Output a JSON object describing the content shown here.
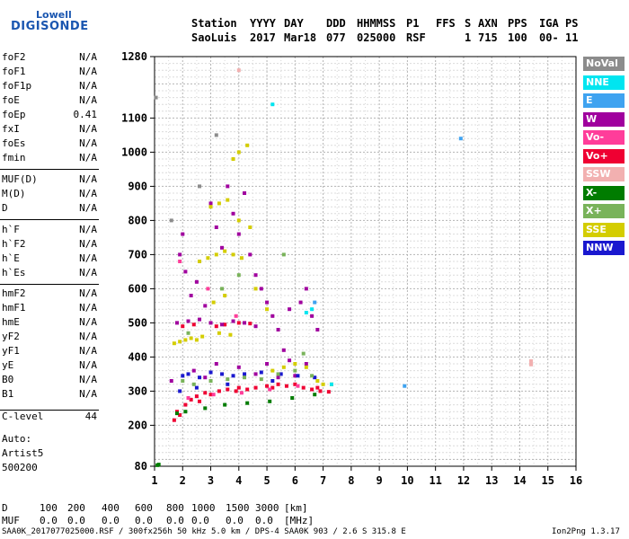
{
  "logo": {
    "line1": "Lowell",
    "line2": "DIGISONDE"
  },
  "header": {
    "labels": [
      "Station",
      "YYYY",
      "DAY",
      "DDD",
      "HHMMSS",
      "P1",
      "FFS",
      "S",
      "AXN",
      "PPS",
      "IGA",
      "PS"
    ],
    "values": [
      "SaoLuis",
      "2017",
      "Mar18",
      "077",
      "025000",
      "RSF",
      "1",
      "715",
      "100",
      "00-",
      "11"
    ]
  },
  "params": {
    "g1": [
      {
        "k": "foF2",
        "v": "N/A"
      },
      {
        "k": "foF1",
        "v": "N/A"
      },
      {
        "k": "foF1p",
        "v": "N/A"
      },
      {
        "k": "foE",
        "v": "N/A"
      },
      {
        "k": "foEp",
        "v": "0.41"
      },
      {
        "k": "fxI",
        "v": "N/A"
      },
      {
        "k": "foEs",
        "v": "N/A"
      },
      {
        "k": "fmin",
        "v": "N/A"
      }
    ],
    "g2": [
      {
        "k": "MUF(D)",
        "v": "N/A"
      },
      {
        "k": "M(D)",
        "v": "N/A"
      },
      {
        "k": "D",
        "v": "N/A"
      }
    ],
    "g3": [
      {
        "k": "h`F",
        "v": "N/A"
      },
      {
        "k": "h`F2",
        "v": "N/A"
      },
      {
        "k": "h`E",
        "v": "N/A"
      },
      {
        "k": "h`Es",
        "v": "N/A"
      }
    ],
    "g4": [
      {
        "k": "hmF2",
        "v": "N/A"
      },
      {
        "k": "hmF1",
        "v": "N/A"
      },
      {
        "k": "hmE",
        "v": "N/A"
      },
      {
        "k": "yF2",
        "v": "N/A"
      },
      {
        "k": "yF1",
        "v": "N/A"
      },
      {
        "k": "yE",
        "v": "N/A"
      },
      {
        "k": "B0",
        "v": "N/A"
      },
      {
        "k": "B1",
        "v": "N/A"
      }
    ],
    "g5": [
      {
        "k": "C-level",
        "v": "44"
      }
    ]
  },
  "auto": {
    "l1": "Auto:",
    "l2": "Artist5",
    "l3": "500200"
  },
  "legend": [
    {
      "label": "NoVal",
      "color": "#8c8c8c"
    },
    {
      "label": "NNE",
      "color": "#00e5f0"
    },
    {
      "label": "E",
      "color": "#3fa3f0"
    },
    {
      "label": "W",
      "color": "#a0009e"
    },
    {
      "label": "Vo-",
      "color": "#ff3d9a"
    },
    {
      "label": "Vo+",
      "color": "#ef0032"
    },
    {
      "label": "SSW",
      "color": "#f2b0b0"
    },
    {
      "label": "X-",
      "color": "#007c00"
    },
    {
      "label": "X+",
      "color": "#79b35a"
    },
    {
      "label": "SSE",
      "color": "#d4cd00"
    },
    {
      "label": "NNW",
      "color": "#1a18cf"
    }
  ],
  "footer": {
    "row1": {
      "label": "D",
      "values": [
        "100",
        "200",
        "400",
        "600",
        "800",
        "1000",
        "1500",
        "3000",
        "[km]"
      ]
    },
    "row2": {
      "label": "MUF",
      "values": [
        "0.0",
        "0.0",
        "0.0",
        "0.0",
        "0.0",
        "0.0",
        "0.0",
        "0.0",
        "[MHz]"
      ]
    },
    "file": "SAA0K_2017077025000.RSF / 300fx256h 50 kHz 5.0 km / DPS-4 SAA0K 903 / 2.6 S 315.8 E",
    "version": "Ion2Png 1.3.17"
  },
  "chart_data": {
    "type": "scatter",
    "xlim": [
      1,
      16
    ],
    "ylim": [
      80,
      1280
    ],
    "x_ticks": [
      1,
      2,
      3,
      4,
      5,
      6,
      7,
      8,
      9,
      10,
      11,
      12,
      13,
      14,
      15,
      16
    ],
    "y_ticks": [
      80,
      200,
      300,
      400,
      500,
      600,
      700,
      800,
      900,
      1000,
      1100,
      1280
    ],
    "grid": true,
    "legend_position": "right",
    "series": [
      {
        "name": "Vo+",
        "color": "#ef0032",
        "points": [
          [
            1.7,
            215
          ],
          [
            1.9,
            230
          ],
          [
            2.1,
            260
          ],
          [
            2.3,
            275
          ],
          [
            2.5,
            285
          ],
          [
            2.8,
            295
          ],
          [
            3.0,
            290
          ],
          [
            3.3,
            300
          ],
          [
            3.6,
            305
          ],
          [
            4.0,
            310
          ],
          [
            4.3,
            305
          ],
          [
            4.6,
            310
          ],
          [
            5.0,
            315
          ],
          [
            5.4,
            320
          ],
          [
            5.7,
            315
          ],
          [
            6.0,
            320
          ],
          [
            6.3,
            310
          ],
          [
            6.6,
            305
          ],
          [
            6.9,
            300
          ],
          [
            7.2,
            298
          ],
          [
            1.8,
            240
          ],
          [
            2.6,
            270
          ],
          [
            3.9,
            300
          ],
          [
            5.2,
            310
          ],
          [
            6.8,
            310
          ],
          [
            3.2,
            490
          ],
          [
            3.5,
            495
          ],
          [
            4.0,
            500
          ],
          [
            2.0,
            490
          ],
          [
            2.4,
            495
          ],
          [
            4.4,
            498
          ]
        ]
      },
      {
        "name": "W",
        "color": "#a0009e",
        "points": [
          [
            1.8,
            500
          ],
          [
            2.2,
            505
          ],
          [
            2.6,
            510
          ],
          [
            3.0,
            500
          ],
          [
            3.4,
            495
          ],
          [
            3.8,
            505
          ],
          [
            4.2,
            500
          ],
          [
            4.6,
            490
          ],
          [
            1.9,
            700
          ],
          [
            2.0,
            760
          ],
          [
            2.1,
            650
          ],
          [
            2.3,
            580
          ],
          [
            2.5,
            620
          ],
          [
            2.8,
            550
          ],
          [
            3.0,
            850
          ],
          [
            3.2,
            780
          ],
          [
            3.4,
            720
          ],
          [
            3.6,
            900
          ],
          [
            3.8,
            820
          ],
          [
            4.0,
            760
          ],
          [
            4.2,
            880
          ],
          [
            4.4,
            700
          ],
          [
            4.6,
            640
          ],
          [
            4.8,
            600
          ],
          [
            5.0,
            560
          ],
          [
            5.2,
            520
          ],
          [
            5.4,
            480
          ],
          [
            5.6,
            420
          ],
          [
            5.8,
            540
          ],
          [
            6.2,
            560
          ],
          [
            6.4,
            600
          ],
          [
            6.6,
            520
          ],
          [
            6.8,
            480
          ],
          [
            2.4,
            360
          ],
          [
            3.2,
            380
          ],
          [
            4.0,
            370
          ],
          [
            5.0,
            380
          ],
          [
            5.8,
            390
          ],
          [
            6.4,
            380
          ],
          [
            1.6,
            330
          ],
          [
            2.8,
            340
          ],
          [
            4.6,
            350
          ],
          [
            5.4,
            340
          ],
          [
            6.0,
            345
          ]
        ]
      },
      {
        "name": "NNW",
        "color": "#1a18cf",
        "points": [
          [
            2.0,
            345
          ],
          [
            2.2,
            350
          ],
          [
            2.6,
            340
          ],
          [
            3.0,
            355
          ],
          [
            3.4,
            350
          ],
          [
            3.8,
            345
          ],
          [
            4.2,
            350
          ],
          [
            4.8,
            355
          ],
          [
            5.5,
            350
          ],
          [
            6.1,
            345
          ],
          [
            6.7,
            340
          ],
          [
            1.9,
            300
          ],
          [
            2.5,
            310
          ],
          [
            3.6,
            320
          ],
          [
            5.2,
            330
          ]
        ]
      },
      {
        "name": "SSE",
        "color": "#d4cd00",
        "points": [
          [
            1.7,
            440
          ],
          [
            1.9,
            445
          ],
          [
            2.1,
            450
          ],
          [
            2.3,
            455
          ],
          [
            2.5,
            450
          ],
          [
            2.7,
            460
          ],
          [
            3.3,
            470
          ],
          [
            3.7,
            465
          ],
          [
            2.6,
            680
          ],
          [
            2.9,
            690
          ],
          [
            3.2,
            700
          ],
          [
            3.5,
            710
          ],
          [
            3.8,
            700
          ],
          [
            4.1,
            690
          ],
          [
            3.0,
            840
          ],
          [
            3.3,
            850
          ],
          [
            3.6,
            860
          ],
          [
            4.0,
            800
          ],
          [
            4.4,
            780
          ],
          [
            5.2,
            360
          ],
          [
            5.6,
            370
          ],
          [
            6.0,
            380
          ],
          [
            6.4,
            370
          ],
          [
            6.8,
            330
          ],
          [
            7.0,
            320
          ],
          [
            7.3,
            320
          ],
          [
            3.8,
            980
          ],
          [
            4.0,
            1000
          ],
          [
            4.3,
            1020
          ],
          [
            3.1,
            560
          ],
          [
            3.5,
            580
          ],
          [
            4.6,
            600
          ],
          [
            5.0,
            540
          ]
        ]
      },
      {
        "name": "X+",
        "color": "#79b35a",
        "points": [
          [
            2.0,
            330
          ],
          [
            2.4,
            320
          ],
          [
            3.0,
            330
          ],
          [
            3.6,
            335
          ],
          [
            4.2,
            340
          ],
          [
            4.8,
            335
          ],
          [
            5.4,
            350
          ],
          [
            6.0,
            360
          ],
          [
            6.6,
            345
          ],
          [
            2.2,
            470
          ],
          [
            3.4,
            600
          ],
          [
            4.0,
            640
          ],
          [
            5.6,
            700
          ],
          [
            6.3,
            410
          ]
        ]
      },
      {
        "name": "X-",
        "color": "#007c00",
        "points": [
          [
            1.1,
            83
          ],
          [
            1.15,
            85
          ],
          [
            2.1,
            240
          ],
          [
            2.8,
            250
          ],
          [
            3.5,
            260
          ],
          [
            4.3,
            265
          ],
          [
            5.1,
            270
          ],
          [
            5.9,
            280
          ],
          [
            6.7,
            290
          ],
          [
            1.8,
            235
          ]
        ]
      },
      {
        "name": "Vo-",
        "color": "#ff3d9a",
        "points": [
          [
            2.2,
            280
          ],
          [
            3.1,
            290
          ],
          [
            4.1,
            295
          ],
          [
            5.1,
            305
          ],
          [
            6.1,
            315
          ],
          [
            2.9,
            600
          ],
          [
            3.9,
            520
          ],
          [
            1.9,
            680
          ]
        ]
      },
      {
        "name": "NNE",
        "color": "#00e5f0",
        "points": [
          [
            5.2,
            1140
          ],
          [
            6.4,
            530
          ],
          [
            6.6,
            540
          ],
          [
            7.3,
            320
          ]
        ]
      },
      {
        "name": "E",
        "color": "#3fa3f0",
        "points": [
          [
            11.9,
            1040
          ],
          [
            9.9,
            315
          ],
          [
            6.7,
            560
          ]
        ]
      },
      {
        "name": "SSW",
        "color": "#f2b0b0",
        "points": [
          [
            14.4,
            378
          ],
          [
            14.4,
            388
          ],
          [
            4.0,
            1240
          ]
        ]
      },
      {
        "name": "NoVal",
        "color": "#8c8c8c",
        "points": [
          [
            1.05,
            1160
          ],
          [
            1.6,
            800
          ],
          [
            2.6,
            900
          ],
          [
            3.2,
            1050
          ]
        ]
      }
    ]
  }
}
